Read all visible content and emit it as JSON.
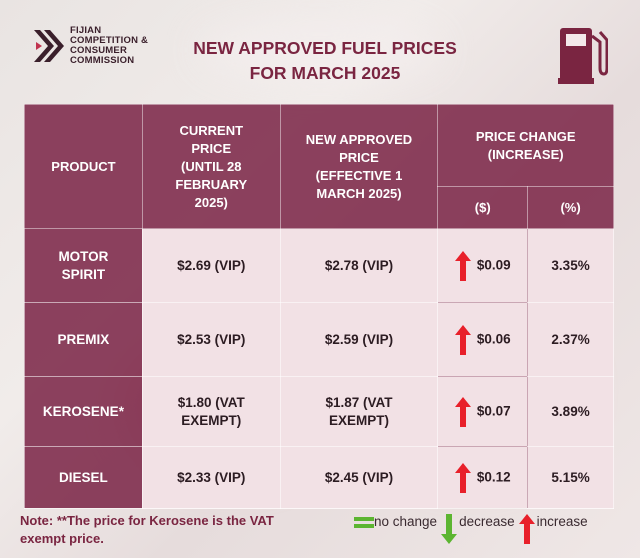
{
  "logo": {
    "lines": [
      "FIJIAN",
      "COMPETITION &",
      "CONSUMER",
      "COMMISSION"
    ],
    "icon": "chevron-logo-icon"
  },
  "title": {
    "line1": "NEW APPROVED FUEL PRICES",
    "line2": "FOR MARCH 2025"
  },
  "header": {
    "product": "PRODUCT",
    "current": [
      "CURRENT",
      "PRICE",
      "(UNTIL 28",
      "FEBRUARY",
      "2025)"
    ],
    "new": [
      "NEW APPROVED",
      "PRICE",
      "(EFFECTIVE 1",
      "MARCH 2025)"
    ],
    "change": [
      "PRICE CHANGE",
      "(INCREASE)"
    ],
    "change_dollar": "($)",
    "change_percent": "(%)"
  },
  "rows": [
    {
      "product": [
        "MOTOR",
        "SPIRIT"
      ],
      "current": [
        "$2.69 (VIP)"
      ],
      "new": [
        "$2.78 (VIP)"
      ],
      "change": "$0.09",
      "percent": "3.35%",
      "direction": "increase"
    },
    {
      "product": [
        "PREMIX"
      ],
      "current": [
        "$2.53 (VIP)"
      ],
      "new": [
        "$2.59 (VIP)"
      ],
      "change": "$0.06",
      "percent": "2.37%",
      "direction": "increase"
    },
    {
      "product": [
        "KEROSENE*"
      ],
      "current": [
        "$1.80 (VAT",
        "EXEMPT)"
      ],
      "new": [
        "$1.87 (VAT",
        "EXEMPT)"
      ],
      "change": "$0.07",
      "percent": "3.89%",
      "direction": "increase"
    },
    {
      "product": [
        "DIESEL"
      ],
      "current": [
        "$2.33 (VIP)"
      ],
      "new": [
        "$2.45 (VIP)"
      ],
      "change": "$0.12",
      "percent": "5.15%",
      "direction": "increase"
    }
  ],
  "note": {
    "line1": "Note: **The price for Kerosene is the VAT",
    "line2": "exempt price."
  },
  "legend": {
    "no_change": "no change",
    "decrease": "decrease",
    "increase": "increase"
  },
  "colors": {
    "brand": "#7a2541",
    "increase": "#e8202a",
    "decrease": "#5cb531",
    "no_change": "#5cb531"
  }
}
